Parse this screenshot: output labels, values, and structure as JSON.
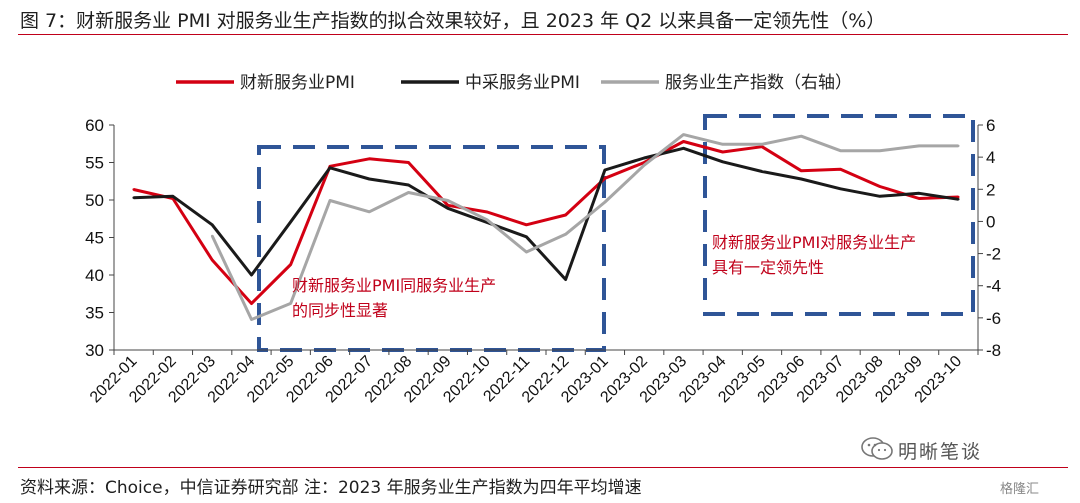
{
  "header": {
    "title": "图 7：财新服务业 PMI 对服务业生产指数的拟合效果较好，且 2023 年 Q2 以来具备一定领先性（%）"
  },
  "footer": {
    "source": "资料来源：Choice，中信证券研究部 注：2023 年服务业生产指数为四年平均增速",
    "watermark": "明晰笔谈",
    "corner_logo": "格隆汇"
  },
  "colors": {
    "caixin": "#d40012",
    "official": "#1a1a1a",
    "production": "#a6a6a6",
    "box": "#2f5597",
    "rule": "#c0001a"
  },
  "chart_data": {
    "type": "line",
    "title": "",
    "legend": {
      "position": "top-center",
      "entries": [
        "财新服务业PMI",
        "中采服务业PMI",
        "服务业生产指数（右轴）"
      ]
    },
    "categories": [
      "2022-01",
      "2022-02",
      "2022-03",
      "2022-04",
      "2022-05",
      "2022-06",
      "2022-07",
      "2022-08",
      "2022-09",
      "2022-10",
      "2022-11",
      "2022-12",
      "2023-01",
      "2023-02",
      "2023-03",
      "2023-04",
      "2023-05",
      "2023-06",
      "2023-07",
      "2023-08",
      "2023-09",
      "2023-10"
    ],
    "y_left": {
      "min": 30,
      "max": 60,
      "ticks": [
        30,
        35,
        40,
        45,
        50,
        55,
        60
      ]
    },
    "y_right": {
      "min": -8,
      "max": 6,
      "ticks": [
        -8,
        -6,
        -4,
        -2,
        0,
        2,
        4,
        6
      ]
    },
    "series": [
      {
        "name": "财新服务业PMI",
        "axis": "left",
        "color": "#d40012",
        "values": [
          51.4,
          50.2,
          42.0,
          36.2,
          41.4,
          54.5,
          55.5,
          55.0,
          49.3,
          48.4,
          46.7,
          48.0,
          52.9,
          55.0,
          57.8,
          56.4,
          57.1,
          53.9,
          54.1,
          51.8,
          50.2,
          50.4
        ]
      },
      {
        "name": "中采服务业PMI",
        "axis": "left",
        "color": "#1a1a1a",
        "values": [
          50.3,
          50.5,
          46.7,
          40.0,
          47.1,
          54.3,
          52.8,
          52.0,
          48.9,
          47.0,
          45.1,
          39.4,
          54.0,
          55.6,
          56.9,
          55.1,
          53.8,
          52.8,
          51.5,
          50.5,
          50.9,
          50.1
        ]
      },
      {
        "name": "服务业生产指数（右轴）",
        "axis": "right",
        "color": "#a6a6a6",
        "values": [
          null,
          null,
          -0.9,
          -6.1,
          -5.1,
          1.3,
          0.6,
          1.8,
          1.3,
          0.1,
          -1.9,
          -0.8,
          1.2,
          3.5,
          5.4,
          4.8,
          4.8,
          5.3,
          4.4,
          4.4,
          4.7,
          4.7
        ]
      }
    ],
    "annotations": [
      {
        "text": [
          "财新服务业PMI同服务业生产",
          "的同步性显著"
        ]
      },
      {
        "text": [
          "财新服务业PMI对服务业生产",
          "具有一定领先性"
        ]
      }
    ]
  }
}
